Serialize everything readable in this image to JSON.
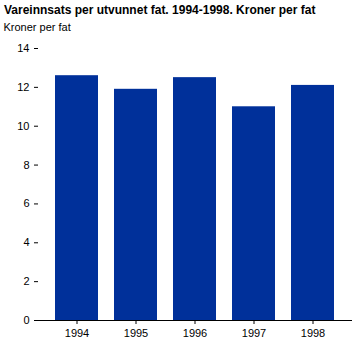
{
  "chart_data": {
    "type": "bar",
    "title": "Vareinnsats per utvunnet fat. 1994-1998. Kroner per fat",
    "y_label": "Kroner per fat",
    "categories": [
      "1994",
      "1995",
      "1996",
      "1997",
      "1998"
    ],
    "values": [
      12.6,
      11.9,
      12.5,
      11.0,
      12.1
    ],
    "color": "#00309a",
    "ylim": [
      0,
      14
    ],
    "yticks": [
      0,
      2,
      4,
      6,
      8,
      10,
      12,
      14
    ],
    "grid": false
  }
}
